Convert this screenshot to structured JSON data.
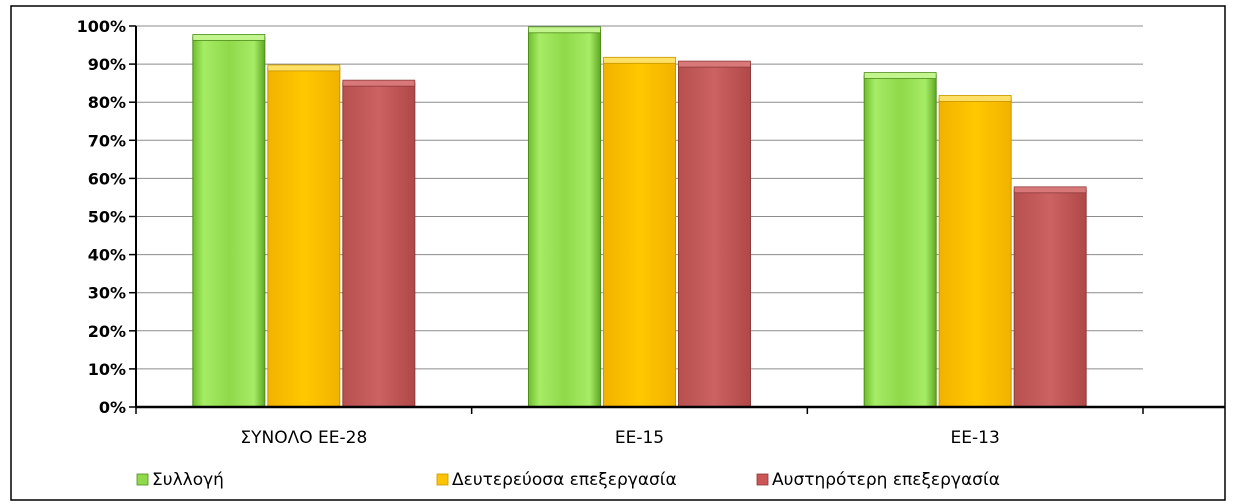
{
  "chart_data": {
    "type": "bar",
    "categories": [
      "ΣΥΝΟΛΟ ΕΕ-28",
      "ΕΕ-15",
      "ΕΕ-13"
    ],
    "series": [
      {
        "name": "Συλλογή",
        "values": [
          97,
          99,
          87
        ],
        "color": "#8FD94A"
      },
      {
        "name": "Δευτερεύοσα επεξεργασία",
        "values": [
          89,
          91,
          81
        ],
        "color": "#FFC400"
      },
      {
        "name": "Αυστηρότερη επεξεργασία",
        "values": [
          85,
          90,
          57
        ],
        "color": "#CC6060"
      }
    ],
    "y_ticks": [
      "0%",
      "10%",
      "20%",
      "30%",
      "40%",
      "50%",
      "60%",
      "70%",
      "80%",
      "90%",
      "100%"
    ],
    "ylim": [
      0,
      100
    ],
    "grid": true,
    "legend_position": "bottom"
  }
}
